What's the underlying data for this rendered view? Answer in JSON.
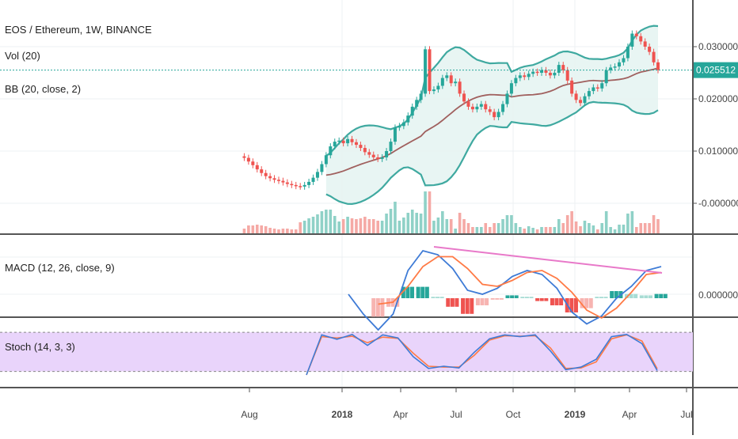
{
  "chart_data": {
    "type": "candlestick",
    "symbol": "EOS / Ethereum",
    "interval": "1W",
    "exchange": "BINANCE",
    "header": "EOS / Ethereum, 1W, BINANCE",
    "indicators": {
      "vol": "Vol (20)",
      "bb": "BB (20, close, 2)",
      "macd": "MACD (12, 26, close, 9)",
      "stoch": "Stoch (14, 3, 3)"
    },
    "price_axis": {
      "ticks": [
        "0.030000",
        "0.020000",
        "0.010000",
        "-0.000000"
      ],
      "tick_values": [
        0.03,
        0.02,
        0.01,
        0.0
      ],
      "last_price": 0.025512,
      "last_price_label": "0.025512",
      "last_price_color": "#26a69a"
    },
    "macd_axis": {
      "ticks": [
        "0.000000"
      ]
    },
    "time_axis": {
      "ticks": [
        "Aug",
        "2018",
        "Apr",
        "Jul",
        "Oct",
        "2019",
        "Apr",
        "Jul"
      ]
    },
    "colors": {
      "up": "#26a69a",
      "down": "#ef5350",
      "vol_up": "#8fd1c7",
      "vol_down": "#f5a9a5",
      "bb_band": "#3fa9a0",
      "bb_basis": "#a0605e",
      "bb_fill": "#e6f4f2",
      "macd_line": "#3e7bd6",
      "signal_line": "#ff7a45",
      "trendline": "#e879c9",
      "stoch_k": "#3e7bd6",
      "stoch_d": "#ff7a45",
      "stoch_band": "#e9d4fb"
    },
    "weekly_close": [
      0.009,
      0.0087,
      0.008,
      0.0073,
      0.0065,
      0.0058,
      0.0052,
      0.0048,
      0.0045,
      0.0043,
      0.004,
      0.0037,
      0.0035,
      0.0033,
      0.0032,
      0.0035,
      0.0041,
      0.0049,
      0.006,
      0.0075,
      0.0092,
      0.0109,
      0.0118,
      0.012,
      0.0115,
      0.0123,
      0.0117,
      0.0112,
      0.0106,
      0.0098,
      0.0093,
      0.0088,
      0.0085,
      0.0088,
      0.01,
      0.0118,
      0.0145,
      0.0148,
      0.0155,
      0.0168,
      0.0185,
      0.0198,
      0.021,
      0.0295,
      0.0215,
      0.0218,
      0.0225,
      0.024,
      0.0245,
      0.023,
      0.0233,
      0.021,
      0.0195,
      0.0185,
      0.018,
      0.0185,
      0.019,
      0.018,
      0.0175,
      0.0165,
      0.0175,
      0.019,
      0.021,
      0.023,
      0.024,
      0.0245,
      0.0242,
      0.0248,
      0.0252,
      0.025,
      0.0255,
      0.025,
      0.0245,
      0.025,
      0.0265,
      0.0255,
      0.0235,
      0.021,
      0.0198,
      0.0192,
      0.0205,
      0.0215,
      0.0222,
      0.022,
      0.023,
      0.0255,
      0.026,
      0.0262,
      0.027,
      0.0278,
      0.03,
      0.0325,
      0.032,
      0.031,
      0.03,
      0.029,
      0.027,
      0.0255
    ],
    "macd_values": {
      "macd": [
        0.0,
        -0.001,
        -0.0018,
        -0.001,
        0.0012,
        0.0022,
        0.002,
        0.0013,
        0.0002,
        0.0,
        0.0003,
        0.0009,
        0.0012,
        0.001,
        0.0003,
        -0.0009,
        -0.0015,
        -0.0011,
        -0.0002,
        0.0004,
        0.0012,
        0.0014
      ],
      "signal": [
        null,
        null,
        -0.0005,
        -0.0004,
        0.0004,
        0.0014,
        0.0019,
        0.0019,
        0.0013,
        0.0005,
        0.0004,
        0.0007,
        0.0011,
        0.0012,
        0.0008,
        0.0001,
        -0.0008,
        -0.0012,
        -0.0007,
        0.0001,
        0.001,
        0.0011
      ]
    },
    "stoch_values": {
      "k": [
        0,
        92,
        82,
        93,
        68,
        92,
        85,
        42,
        15,
        20,
        16,
        52,
        83,
        92,
        88,
        92,
        55,
        12,
        18,
        36,
        88,
        93,
        72,
        10
      ],
      "d": [
        0,
        88,
        85,
        89,
        74,
        87,
        84,
        50,
        20,
        18,
        18,
        45,
        80,
        90,
        89,
        90,
        62,
        15,
        16,
        30,
        83,
        92,
        78,
        14
      ],
      "upper": 80,
      "lower": 20
    },
    "grid": true,
    "legend_position": "top-left"
  }
}
